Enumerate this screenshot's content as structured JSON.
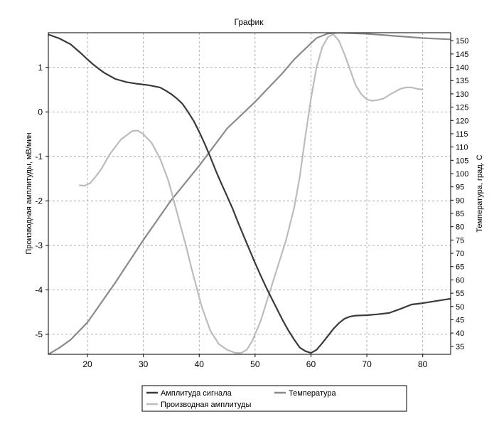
{
  "chart_data": {
    "type": "line",
    "title": "График",
    "x_axis": {
      "label": "",
      "range": [
        13,
        85
      ],
      "ticks": [
        20,
        30,
        40,
        50,
        60,
        70,
        80
      ]
    },
    "y_left": {
      "label": "Производная амплитуды, мВ/мин",
      "range": [
        -5.45,
        1.78
      ],
      "ticks": [
        1,
        0,
        -1,
        -2,
        -3,
        -4,
        -5
      ]
    },
    "y_right": {
      "label": "Температура, град. С",
      "range": [
        32,
        153
      ],
      "ticks": [
        35,
        40,
        45,
        50,
        55,
        60,
        65,
        70,
        75,
        80,
        85,
        90,
        95,
        100,
        105,
        110,
        115,
        120,
        125,
        130,
        135,
        140,
        145,
        150
      ]
    },
    "grid": true,
    "legend_position": "bottom",
    "series": [
      {
        "name": "Амплитуда сигнала",
        "axis": "left",
        "color": "#3a3a3a",
        "x": [
          13,
          15,
          17,
          19,
          20,
          21,
          22,
          23,
          25,
          27,
          29,
          31,
          33,
          34,
          35,
          36,
          37,
          38,
          39,
          40,
          41,
          42,
          43,
          44,
          45,
          46,
          47,
          48,
          49,
          50,
          51,
          52,
          53,
          54,
          55,
          56,
          57,
          58,
          59,
          60,
          61,
          62,
          63,
          64,
          65,
          66,
          67,
          68,
          70,
          72,
          74,
          76,
          78,
          80,
          82,
          84,
          85
        ],
        "y": [
          1.74,
          1.65,
          1.52,
          1.3,
          1.18,
          1.07,
          0.97,
          0.88,
          0.74,
          0.67,
          0.63,
          0.6,
          0.55,
          0.48,
          0.4,
          0.3,
          0.18,
          0.0,
          -0.2,
          -0.45,
          -0.72,
          -1.02,
          -1.33,
          -1.62,
          -1.9,
          -2.18,
          -2.5,
          -2.8,
          -3.1,
          -3.4,
          -3.68,
          -3.95,
          -4.2,
          -4.45,
          -4.7,
          -4.92,
          -5.12,
          -5.3,
          -5.38,
          -5.42,
          -5.35,
          -5.2,
          -5.04,
          -4.88,
          -4.75,
          -4.65,
          -4.6,
          -4.58,
          -4.57,
          -4.55,
          -4.52,
          -4.43,
          -4.33,
          -4.3,
          -4.26,
          -4.22,
          -4.2
        ]
      },
      {
        "name": "Температура",
        "axis": "right",
        "color": "#8a8a8a",
        "x": [
          13,
          15,
          17,
          20,
          25,
          30,
          35,
          40,
          45,
          50,
          55,
          57,
          59,
          61,
          63,
          65,
          70,
          75,
          80,
          85
        ],
        "y": [
          32,
          34.5,
          37.5,
          44,
          59,
          75,
          90,
          103,
          117,
          127,
          138,
          143,
          147,
          151,
          152.7,
          153,
          152.6,
          151.8,
          151,
          150.5
        ]
      },
      {
        "name": "Производная амплитуды",
        "axis": "left",
        "color": "#bcbcbc",
        "x": [
          18.5,
          19.5,
          20.5,
          21.5,
          22.5,
          24,
          26,
          28,
          29,
          30,
          31.5,
          33,
          34.5,
          36,
          37.5,
          39,
          40.5,
          42,
          43.5,
          45,
          46.5,
          47.5,
          48.5,
          49.5,
          51,
          52.5,
          54,
          55.5,
          57,
          58,
          59,
          60,
          61,
          62,
          63,
          64,
          65,
          66,
          67,
          68,
          69,
          70,
          71,
          72,
          73,
          74,
          75,
          76,
          77,
          78,
          79,
          80
        ],
        "y": [
          -1.65,
          -1.66,
          -1.6,
          -1.45,
          -1.28,
          -0.95,
          -0.62,
          -0.43,
          -0.42,
          -0.5,
          -0.7,
          -1.05,
          -1.55,
          -2.25,
          -2.95,
          -3.7,
          -4.4,
          -4.92,
          -5.22,
          -5.35,
          -5.42,
          -5.42,
          -5.35,
          -5.15,
          -4.7,
          -4.1,
          -3.5,
          -2.9,
          -2.15,
          -1.45,
          -0.55,
          0.3,
          1.0,
          1.45,
          1.68,
          1.75,
          1.6,
          1.3,
          0.95,
          0.6,
          0.4,
          0.28,
          0.25,
          0.27,
          0.3,
          0.38,
          0.45,
          0.52,
          0.55,
          0.55,
          0.52,
          0.5
        ]
      }
    ]
  }
}
